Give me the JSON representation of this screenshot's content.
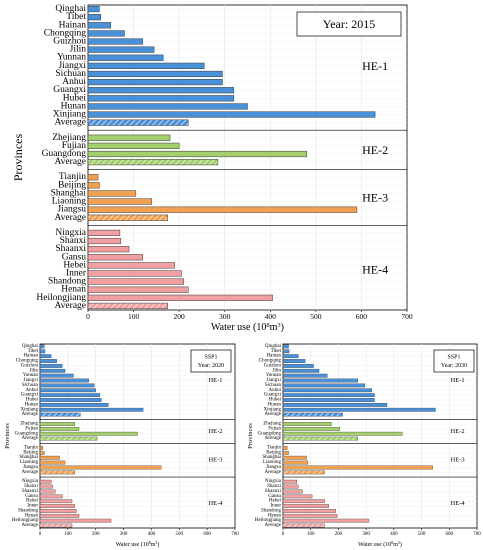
{
  "chart_data": [
    {
      "type": "bar",
      "orientation": "horizontal",
      "title": "Year: 2015",
      "scenario": "",
      "xlabel": "Water use (10",
      "xlabel_sup": "8",
      "xlabel_unit": "m",
      "xlabel_sup2": "3",
      "xlabel_close": ")",
      "ylabel": "Provinces",
      "xlim": [
        0,
        700
      ],
      "xticks": [
        0,
        100,
        200,
        300,
        400,
        500,
        600,
        700
      ],
      "grid": true,
      "groups": [
        {
          "name": "HE-1",
          "color": "#4a90d9",
          "label_color": "#3a8fd8",
          "categories": [
            "Qinghai",
            "Tibet",
            "Hainan",
            "Chongqing",
            "Guizhou",
            "Jilin",
            "Yunnan",
            "Jiangxi",
            "Sichuan",
            "Anhui",
            "Guangxi",
            "Hubei",
            "Hunan",
            "Xinjiang",
            "Average"
          ],
          "values": [
            25,
            28,
            50,
            80,
            120,
            145,
            165,
            255,
            295,
            295,
            320,
            320,
            350,
            630,
            220
          ]
        },
        {
          "name": "HE-2",
          "color": "#a3cf6e",
          "label_color": "#9ccc65",
          "categories": [
            "Zhejiang",
            "Fujian",
            "Guangdong",
            "Average"
          ],
          "values": [
            180,
            200,
            480,
            285
          ]
        },
        {
          "name": "HE-3",
          "color": "#f0a050",
          "label_color": "#e8831f",
          "categories": [
            "Tianjin",
            "Beijing",
            "Shanghai",
            "Liaoning",
            "Jiangsu",
            "Average"
          ],
          "values": [
            22,
            25,
            105,
            140,
            590,
            175
          ]
        },
        {
          "name": "HE-4",
          "color": "#f0a0a0",
          "label_color": "#ee9090",
          "categories": [
            "Ningxia",
            "Shanxi",
            "Shaanxi",
            "Gansu",
            "Hebei",
            "Inner",
            "Shandong",
            "Henan",
            "Heilongjiang",
            "Average"
          ],
          "values": [
            70,
            72,
            90,
            120,
            190,
            205,
            210,
            220,
            405,
            175
          ]
        }
      ]
    },
    {
      "type": "bar",
      "orientation": "horizontal",
      "title": "Year: 2020",
      "scenario": "SSP1",
      "xlabel": "Water use (10",
      "xlabel_sup": "8",
      "xlabel_unit": "m",
      "xlabel_sup2": "3",
      "xlabel_close": ")",
      "ylabel": "Provinces",
      "xlim": [
        0,
        700
      ],
      "xticks": [
        0,
        100,
        200,
        300,
        400,
        500,
        600,
        700
      ],
      "grid": true,
      "groups": [
        {
          "name": "HE-1",
          "color": "#4a90d9",
          "label_color": "#3a8fd8",
          "categories": [
            "Qinghai",
            "Tibet",
            "Hainan",
            "Chongqing",
            "Guizhou",
            "Jilin",
            "Yunnan",
            "Jiangxi",
            "Sichuan",
            "Anhui",
            "Guangxi",
            "Hubei",
            "Hunan",
            "Xinjiang",
            "Average"
          ],
          "values": [
            15,
            18,
            40,
            60,
            80,
            90,
            120,
            175,
            195,
            200,
            215,
            220,
            245,
            370,
            145
          ]
        },
        {
          "name": "HE-2",
          "color": "#a3cf6e",
          "label_color": "#9ccc65",
          "categories": [
            "Zhejiang",
            "Fujian",
            "Guangdong",
            "Average"
          ],
          "values": [
            125,
            140,
            350,
            205
          ]
        },
        {
          "name": "HE-3",
          "color": "#f0a050",
          "label_color": "#e8831f",
          "categories": [
            "Tianjin",
            "Beijing",
            "Shanghai",
            "Liaoning",
            "Jiangsu",
            "Average"
          ],
          "values": [
            10,
            15,
            70,
            90,
            435,
            125
          ]
        },
        {
          "name": "HE-4",
          "color": "#f0a0a0",
          "label_color": "#ee9090",
          "categories": [
            "Ningxia",
            "Shanxi",
            "Shaanxi",
            "Gansu",
            "Hebei",
            "Inner",
            "Shandong",
            "Henan",
            "Heilongjiang",
            "Average"
          ],
          "values": [
            40,
            45,
            55,
            80,
            115,
            125,
            130,
            140,
            255,
            115
          ]
        }
      ]
    },
    {
      "type": "bar",
      "orientation": "horizontal",
      "title": "Year: 2030",
      "scenario": "SSP1",
      "xlabel": "Water use (10",
      "xlabel_sup": "8",
      "xlabel_unit": "m",
      "xlabel_sup2": "3",
      "xlabel_close": ")",
      "ylabel": "Provinces",
      "xlim": [
        0,
        700
      ],
      "xticks": [
        0,
        100,
        200,
        300,
        400,
        500,
        600,
        700
      ],
      "grid": true,
      "groups": [
        {
          "name": "HE-1",
          "color": "#4a90d9",
          "label_color": "#3a8fd8",
          "categories": [
            "Qinghai",
            "Tibet",
            "Hainan",
            "Chongqing",
            "Guizhou",
            "Jilin",
            "Yunnan",
            "Jiangxi",
            "Sichuan",
            "Anhui",
            "Guangxi",
            "Hubei",
            "Hunan",
            "Xinjiang",
            "Average"
          ],
          "values": [
            20,
            22,
            55,
            80,
            110,
            130,
            160,
            270,
            295,
            320,
            330,
            330,
            375,
            550,
            215
          ]
        },
        {
          "name": "HE-2",
          "color": "#a3cf6e",
          "label_color": "#9ccc65",
          "categories": [
            "Zhejiang",
            "Fujian",
            "Guangdong",
            "Average"
          ],
          "values": [
            175,
            205,
            430,
            270
          ]
        },
        {
          "name": "HE-3",
          "color": "#f0a050",
          "label_color": "#e8831f",
          "categories": [
            "Tianjin",
            "Beijing",
            "Shanghai",
            "Liaoning",
            "Jiangsu",
            "Average"
          ],
          "values": [
            15,
            20,
            85,
            90,
            540,
            150
          ]
        },
        {
          "name": "HE-4",
          "color": "#f0a0a0",
          "label_color": "#ee9090",
          "categories": [
            "Ningxia",
            "Shanxi",
            "Shaanxi",
            "Gansu",
            "Hebei",
            "Inner",
            "Shandong",
            "Henan",
            "Heilongjiang",
            "Average"
          ],
          "values": [
            50,
            55,
            70,
            105,
            150,
            165,
            190,
            195,
            310,
            150
          ]
        }
      ]
    }
  ]
}
